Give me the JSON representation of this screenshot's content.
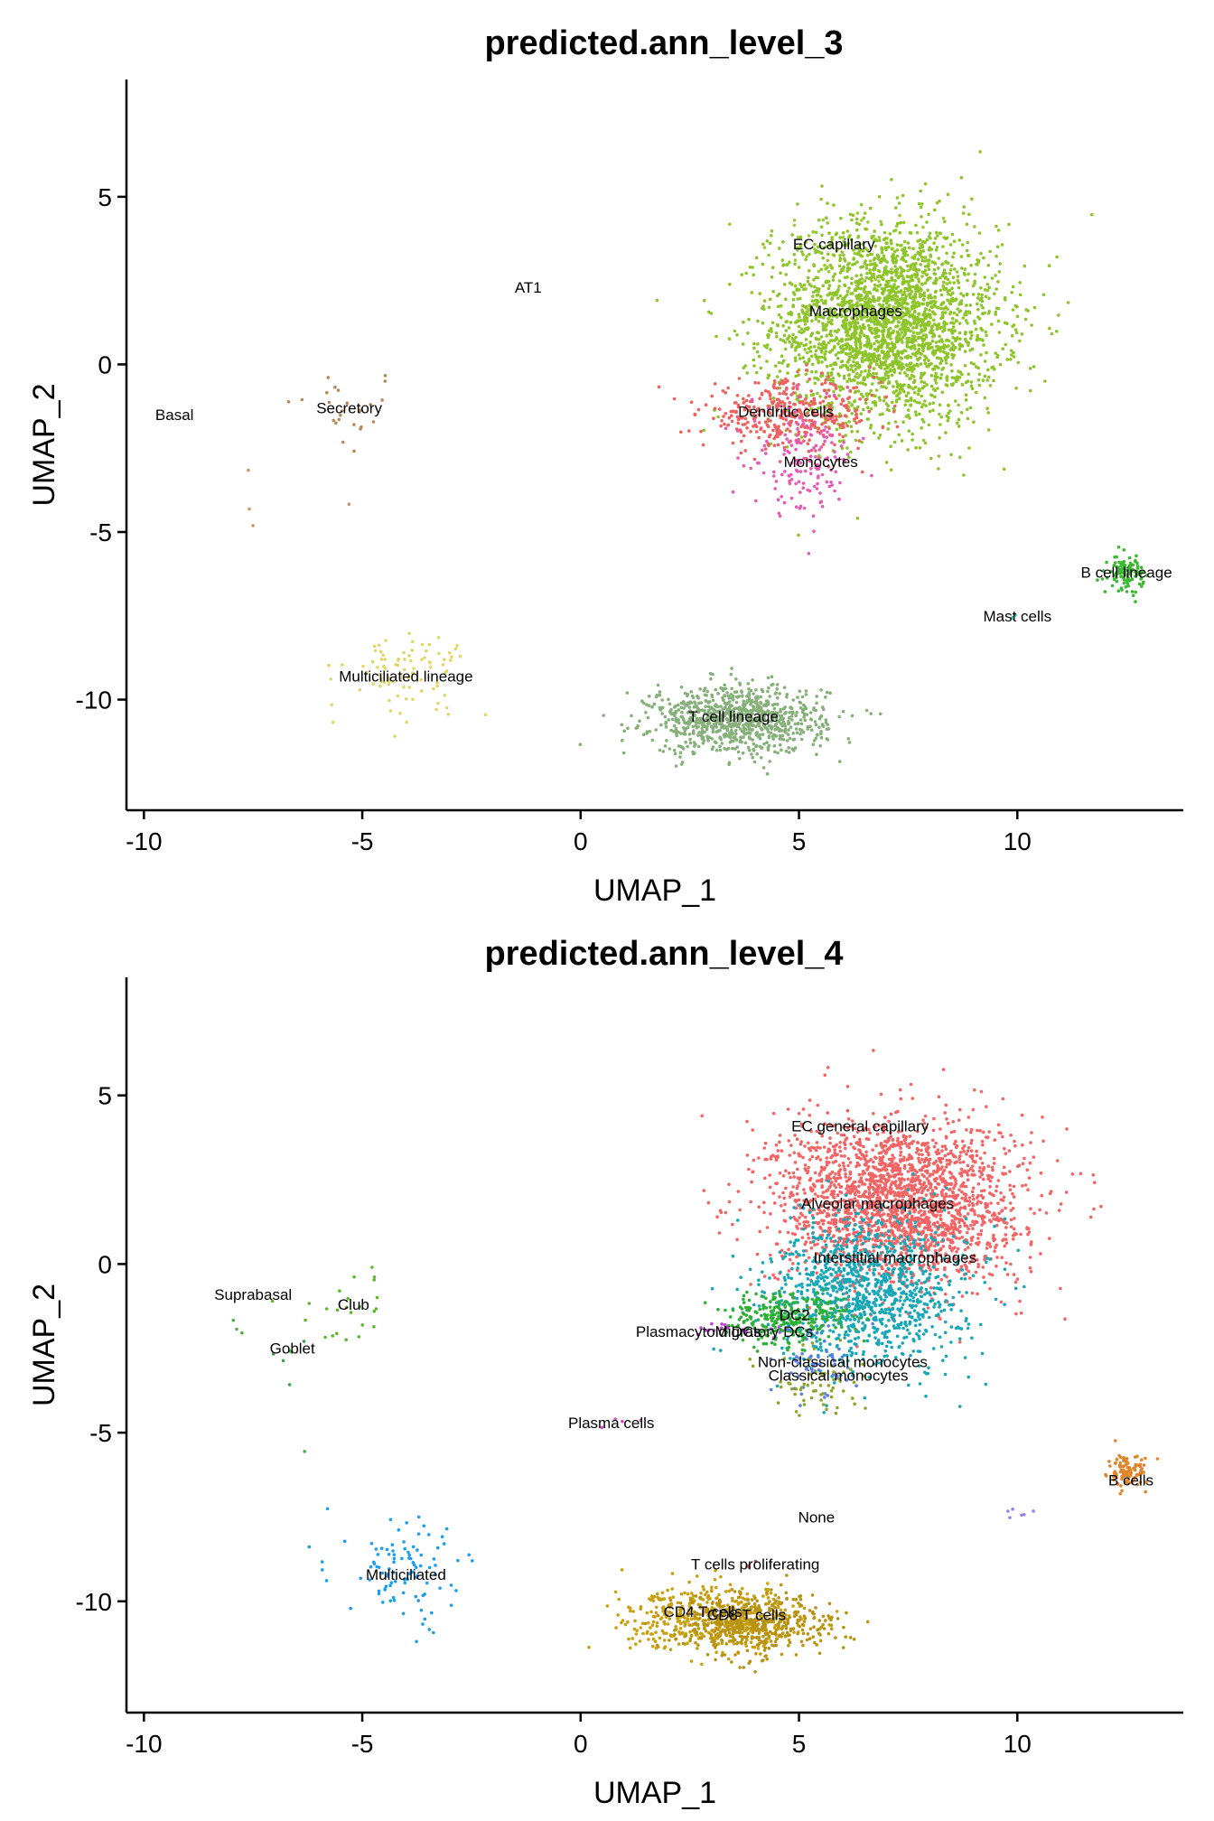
{
  "chart_data": [
    {
      "type": "scatter",
      "title": "predicted.ann_level_3",
      "xlabel": "UMAP_1",
      "ylabel": "UMAP_2",
      "xlim": [
        -10.4,
        13.8
      ],
      "ylim": [
        -13.3,
        8.5
      ],
      "xticks": [
        -10,
        -5,
        0,
        5,
        10
      ],
      "xtick_labels": [
        "-10",
        "-5",
        "0",
        "5",
        "10"
      ],
      "yticks": [
        -10,
        -5,
        0,
        5
      ],
      "ytick_labels": [
        "-10",
        "-5",
        "0",
        "5"
      ],
      "legend": "none",
      "grid": false,
      "clusters": [
        {
          "label": "AT1",
          "label_x": -1.2,
          "label_y": 2.3,
          "color": "#B8A020",
          "n": 0,
          "cx": -1.2,
          "cy": 2.3,
          "sx": 0,
          "sy": 0
        },
        {
          "label": "Basal",
          "label_x": -9.3,
          "label_y": -1.5,
          "color": "#C49A6C",
          "n": 4,
          "cx": -7.8,
          "cy": -3.0,
          "sx": 0.9,
          "sy": 1.6
        },
        {
          "label": "Secretory",
          "label_x": -5.3,
          "label_y": -1.3,
          "color": "#B58A58",
          "n": 24,
          "cx": -5.4,
          "cy": -1.4,
          "sx": 0.7,
          "sy": 0.7
        },
        {
          "label": "EC capillary",
          "label_x": 5.8,
          "label_y": 3.6,
          "color": "#9ACD32",
          "n": 60,
          "cx": 6.5,
          "cy": 3.5,
          "sx": 1.2,
          "sy": 0.6
        },
        {
          "label": "Macrophages",
          "label_x": 6.3,
          "label_y": 1.6,
          "color": "#8DC52A",
          "n": 2600,
          "cx": 7.0,
          "cy": 1.2,
          "sx": 1.3,
          "sy": 1.5
        },
        {
          "label": "Dendritic cells",
          "label_x": 4.7,
          "label_y": -1.4,
          "color": "#F06060",
          "n": 380,
          "cx": 4.8,
          "cy": -1.5,
          "sx": 1.0,
          "sy": 0.5
        },
        {
          "label": "Monocytes",
          "label_x": 5.5,
          "label_y": -2.9,
          "color": "#E75AB3",
          "n": 150,
          "cx": 5.1,
          "cy": -2.9,
          "sx": 0.6,
          "sy": 0.8
        },
        {
          "label": "B cell lineage",
          "label_x": 12.5,
          "label_y": -6.2,
          "color": "#3CB832",
          "n": 110,
          "cx": 12.5,
          "cy": -6.2,
          "sx": 0.2,
          "sy": 0.25
        },
        {
          "label": "Mast cells",
          "label_x": 10.0,
          "label_y": -7.5,
          "color": "#2EC4B6",
          "n": 3,
          "cx": 10.0,
          "cy": -7.5,
          "sx": 0.1,
          "sy": 0.05
        },
        {
          "label": "Multiciliated lineage",
          "label_x": -4.0,
          "label_y": -9.3,
          "color": "#E3D66A",
          "n": 90,
          "cx": -4.0,
          "cy": -9.2,
          "sx": 0.7,
          "sy": 0.6
        },
        {
          "label": "T cell lineage",
          "label_x": 3.5,
          "label_y": -10.5,
          "color": "#86B07A",
          "n": 900,
          "cx": 3.6,
          "cy": -10.6,
          "sx": 1.0,
          "sy": 0.5
        }
      ]
    },
    {
      "type": "scatter",
      "title": "predicted.ann_level_4",
      "xlabel": "UMAP_1",
      "ylabel": "UMAP_2",
      "xlim": [
        -10.4,
        13.8
      ],
      "ylim": [
        -13.3,
        8.5
      ],
      "xticks": [
        -10,
        -5,
        0,
        5,
        10
      ],
      "xtick_labels": [
        "-10",
        "-5",
        "0",
        "5",
        "10"
      ],
      "yticks": [
        -10,
        -5,
        0,
        5
      ],
      "ytick_labels": [
        "-10",
        "-5",
        "0",
        "5"
      ],
      "legend": "none",
      "grid": false,
      "clusters": [
        {
          "label": "Suprabasal",
          "label_x": -7.5,
          "label_y": -0.9,
          "color": "#4DAF4A",
          "n": 5,
          "cx": -7.6,
          "cy": -2.0,
          "sx": 0.8,
          "sy": 1.2
        },
        {
          "label": "Club",
          "label_x": -5.2,
          "label_y": -1.2,
          "color": "#5EB82C",
          "n": 24,
          "cx": -5.3,
          "cy": -1.3,
          "sx": 0.6,
          "sy": 0.6
        },
        {
          "label": "Goblet",
          "label_x": -6.6,
          "label_y": -2.5,
          "color": "#3BA050",
          "n": 4,
          "cx": -6.6,
          "cy": -2.7,
          "sx": 0.4,
          "sy": 0.4
        },
        {
          "label": "EC general capillary",
          "label_x": 6.4,
          "label_y": 4.1,
          "color": "#F25C5C",
          "n": 40,
          "cx": 6.6,
          "cy": 3.8,
          "sx": 1.0,
          "sy": 0.5
        },
        {
          "label": "Alveolar macrophages",
          "label_x": 6.8,
          "label_y": 1.8,
          "color": "#F46464",
          "n": 2200,
          "cx": 7.3,
          "cy": 1.8,
          "sx": 1.4,
          "sy": 1.2
        },
        {
          "label": "Interstitial macrophages",
          "label_x": 7.2,
          "label_y": 0.2,
          "color": "#17A8B8",
          "n": 1100,
          "cx": 6.6,
          "cy": -0.8,
          "sx": 1.1,
          "sy": 1.1
        },
        {
          "label": "DC2",
          "label_x": 4.9,
          "label_y": -1.5,
          "color": "#2DB034",
          "n": 280,
          "cx": 4.7,
          "cy": -1.6,
          "sx": 0.7,
          "sy": 0.4
        },
        {
          "label": "Plasmacytoid DCs",
          "label_x": 2.7,
          "label_y": -2.0,
          "color": "#C040D8",
          "n": 14,
          "cx": 3.1,
          "cy": -1.9,
          "sx": 0.35,
          "sy": 0.1
        },
        {
          "label": "Migratory DCs",
          "label_x": 4.2,
          "label_y": -2.0,
          "color": "#9A5BDC",
          "n": 8,
          "cx": 4.3,
          "cy": -2.0,
          "sx": 0.3,
          "sy": 0.1
        },
        {
          "label": "Non-classical monocytes",
          "label_x": 6.0,
          "label_y": -2.9,
          "color": "#5A7DE8",
          "n": 50,
          "cx": 5.3,
          "cy": -3.0,
          "sx": 0.5,
          "sy": 0.5
        },
        {
          "label": "Classical monocytes",
          "label_x": 5.9,
          "label_y": -3.3,
          "color": "#8DA628",
          "n": 60,
          "cx": 5.5,
          "cy": -3.5,
          "sx": 0.6,
          "sy": 0.5
        },
        {
          "label": "Plasma cells",
          "label_x": 0.7,
          "label_y": -4.7,
          "color": "#D94BC0",
          "n": 4,
          "cx": 0.8,
          "cy": -4.7,
          "sx": 0.3,
          "sy": 0.15
        },
        {
          "label": "B cells",
          "label_x": 12.6,
          "label_y": -6.4,
          "color": "#E0862A",
          "n": 110,
          "cx": 12.5,
          "cy": -6.2,
          "sx": 0.22,
          "sy": 0.25
        },
        {
          "label": "None",
          "label_x": 5.4,
          "label_y": -7.5,
          "color": "#A080F0",
          "n": 6,
          "cx": 10.0,
          "cy": -7.4,
          "sx": 0.12,
          "sy": 0.1
        },
        {
          "label": "T cells proliferating",
          "label_x": 4.0,
          "label_y": -8.9,
          "color": "#C05050",
          "n": 3,
          "cx": 3.9,
          "cy": -8.9,
          "sx": 0.1,
          "sy": 0.05
        },
        {
          "label": "Multiciliated",
          "label_x": -4.0,
          "label_y": -9.2,
          "color": "#1A9EF0",
          "n": 100,
          "cx": -4.0,
          "cy": -9.2,
          "sx": 0.7,
          "sy": 0.8
        },
        {
          "label": "CD4 T cells",
          "label_x": 2.8,
          "label_y": -10.3,
          "color": "#C8A010",
          "n": 500,
          "cx": 3.1,
          "cy": -10.5,
          "sx": 1.0,
          "sy": 0.45
        },
        {
          "label": "CD8 T cells",
          "label_x": 3.8,
          "label_y": -10.4,
          "color": "#B89312",
          "n": 450,
          "cx": 4.0,
          "cy": -10.7,
          "sx": 0.9,
          "sy": 0.45
        }
      ]
    }
  ]
}
